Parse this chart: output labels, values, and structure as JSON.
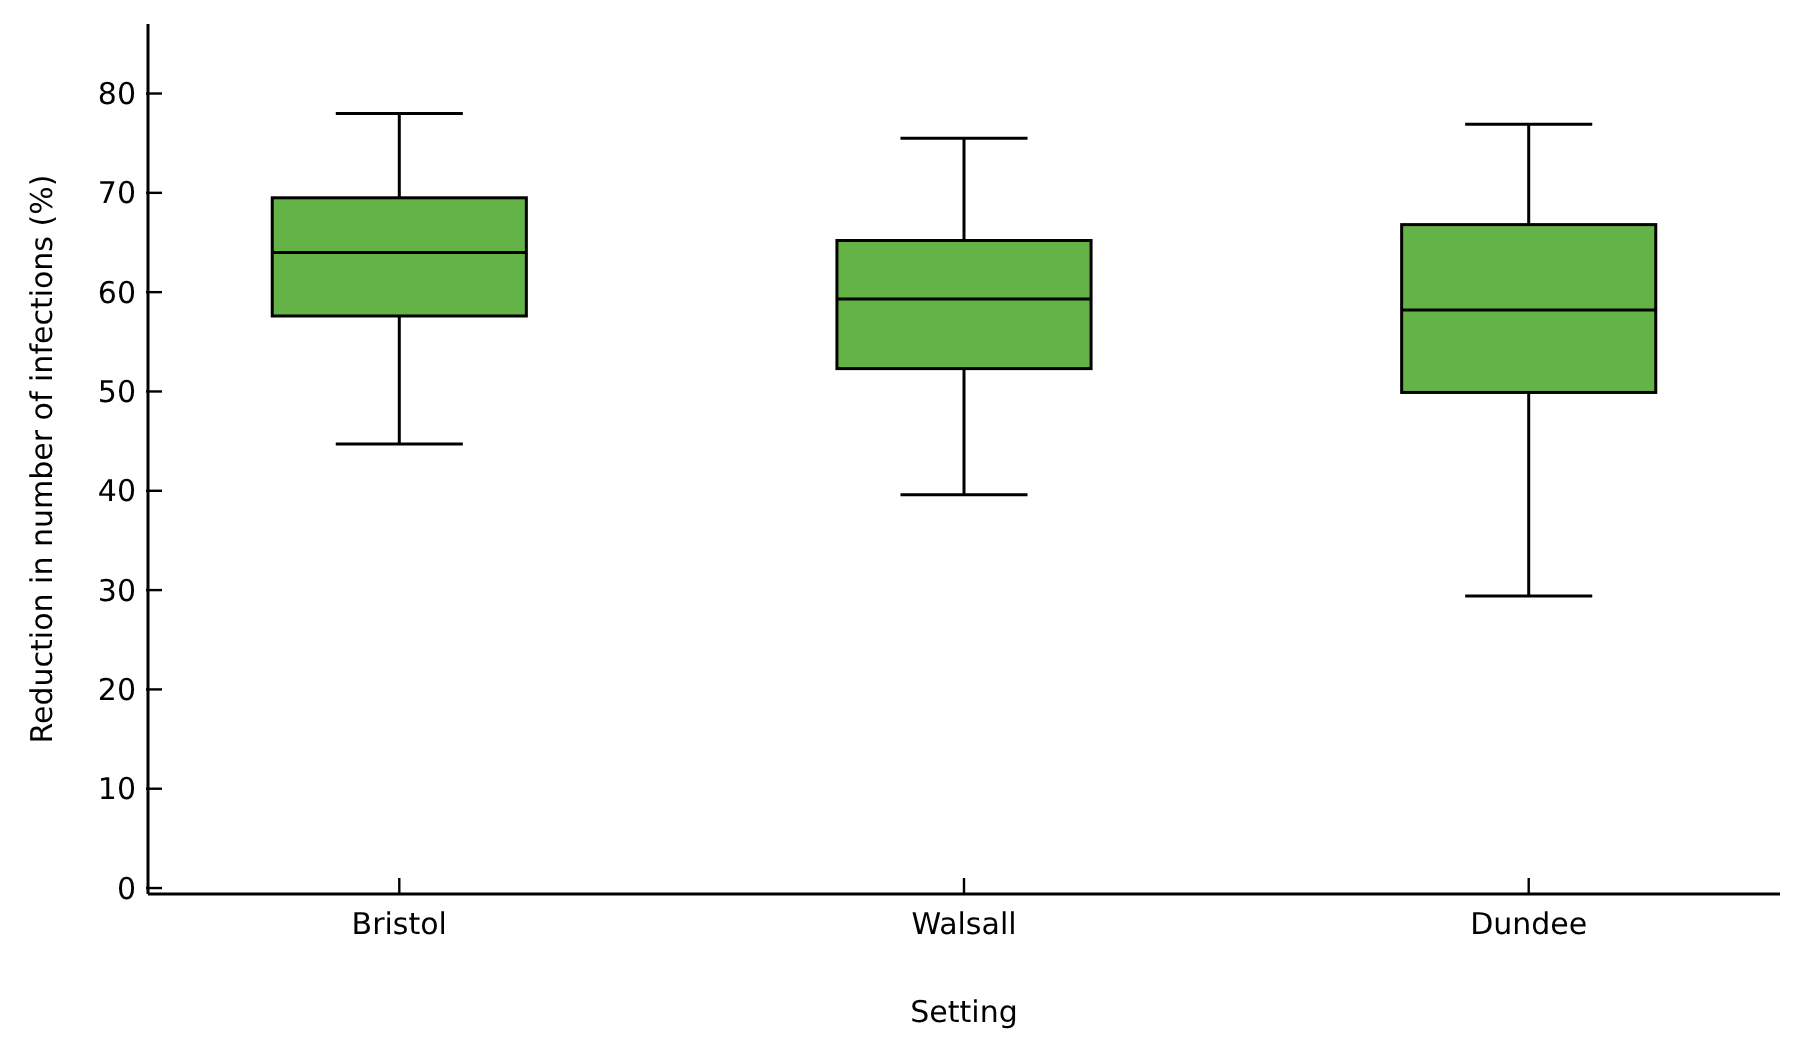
{
  "chart_data": {
    "type": "box",
    "xlabel": "Setting",
    "ylabel": "Reduction in number of infections (%)",
    "categories": [
      "Bristol",
      "Walsall",
      "Dundee"
    ],
    "series": [
      {
        "color": "#63b347",
        "boxes": [
          {
            "low": 44.7,
            "q1": 57.6,
            "median": 64.0,
            "q3": 69.5,
            "high": 78.0
          },
          {
            "low": 39.6,
            "q1": 52.3,
            "median": 59.3,
            "q3": 65.2,
            "high": 75.5
          },
          {
            "low": 29.4,
            "q1": 49.9,
            "median": 58.2,
            "q3": 66.8,
            "high": 76.9
          }
        ]
      }
    ],
    "ylim": [
      -0.6,
      87
    ],
    "yticks": [
      0,
      10,
      20,
      30,
      40,
      50,
      60,
      70,
      80
    ],
    "grid": false
  }
}
